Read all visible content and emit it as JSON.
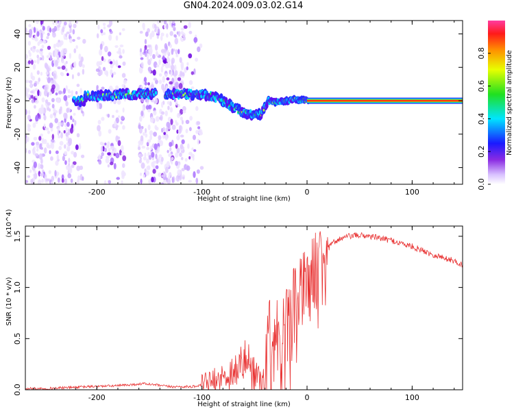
{
  "title": "GN04.2024.009.03.02.G14",
  "chart_data": [
    {
      "type": "heatmap",
      "title": "GN04.2024.009.03.02.G14",
      "xlabel": "Height of straight line (km)",
      "ylabel": "Frequency (Hz)",
      "xlim": [
        -268,
        148
      ],
      "ylim": [
        -50,
        48
      ],
      "x_ticks": [
        -200,
        -100,
        0,
        100
      ],
      "x_tick_labels": [
        "-200",
        "-100",
        "0",
        "100"
      ],
      "y_ticks": [
        -40,
        -20,
        0,
        20,
        40
      ],
      "y_tick_labels": [
        "-40",
        "-20",
        "0",
        "20",
        "40"
      ],
      "colorbar": {
        "label": "Normalized spectral amplitude",
        "range": [
          0,
          1
        ],
        "ticks": [
          0.0,
          0.2,
          0.4,
          0.6,
          0.8
        ],
        "tick_labels": [
          "0.0",
          "0.2",
          "0.4",
          "0.6",
          "0.8"
        ]
      },
      "ridge": {
        "x": [
          -212,
          -190,
          -170,
          -155,
          -145,
          -125,
          -105,
          -90,
          -80,
          -70,
          -60,
          -50,
          -44,
          -40,
          -36,
          -30,
          -20,
          -10,
          0,
          5,
          148
        ],
        "y": [
          3,
          3,
          4,
          4,
          4,
          4,
          4,
          3,
          0,
          -4,
          -7,
          -9,
          -8,
          -4,
          0,
          -1,
          0,
          1,
          0,
          0,
          0
        ]
      },
      "grid": false
    },
    {
      "type": "line",
      "xlabel": "Height of straight line (km)",
      "ylabel": "SNR (10 * v/v)",
      "y_multiplier": "(x10^4)",
      "xlim": [
        -268,
        148
      ],
      "ylim": [
        0,
        1.6
      ],
      "x_ticks": [
        -200,
        -100,
        0,
        100
      ],
      "x_tick_labels": [
        "-200",
        "-100",
        "0",
        "100"
      ],
      "y_ticks": [
        0.0,
        0.5,
        1.0,
        1.5
      ],
      "y_tick_labels": [
        "0.0",
        "0.5",
        "1.0",
        "1.5"
      ],
      "series": [
        {
          "color": "#e83030",
          "x": [
            -268,
            -240,
            -210,
            -180,
            -155,
            -130,
            -110,
            -95,
            -85,
            -75,
            -65,
            -58,
            -52,
            -46,
            -42,
            -38,
            -34,
            -30,
            -26,
            -22,
            -18,
            -14,
            -10,
            -6,
            -2,
            2,
            6,
            10,
            15,
            20,
            25,
            30,
            40,
            50,
            60,
            70,
            80,
            90,
            100,
            110,
            120,
            130,
            140,
            148
          ],
          "y": [
            0.01,
            0.015,
            0.03,
            0.04,
            0.06,
            0.03,
            0.03,
            0.05,
            0.08,
            0.15,
            0.22,
            0.3,
            0.2,
            0.08,
            0.05,
            0.35,
            0.7,
            0.55,
            0.6,
            0.7,
            0.55,
            0.75,
            0.85,
            0.9,
            1.0,
            1.05,
            1.12,
            1.2,
            1.3,
            1.38,
            1.44,
            1.47,
            1.5,
            1.51,
            1.5,
            1.48,
            1.46,
            1.43,
            1.4,
            1.36,
            1.32,
            1.29,
            1.26,
            1.22
          ]
        }
      ]
    }
  ]
}
